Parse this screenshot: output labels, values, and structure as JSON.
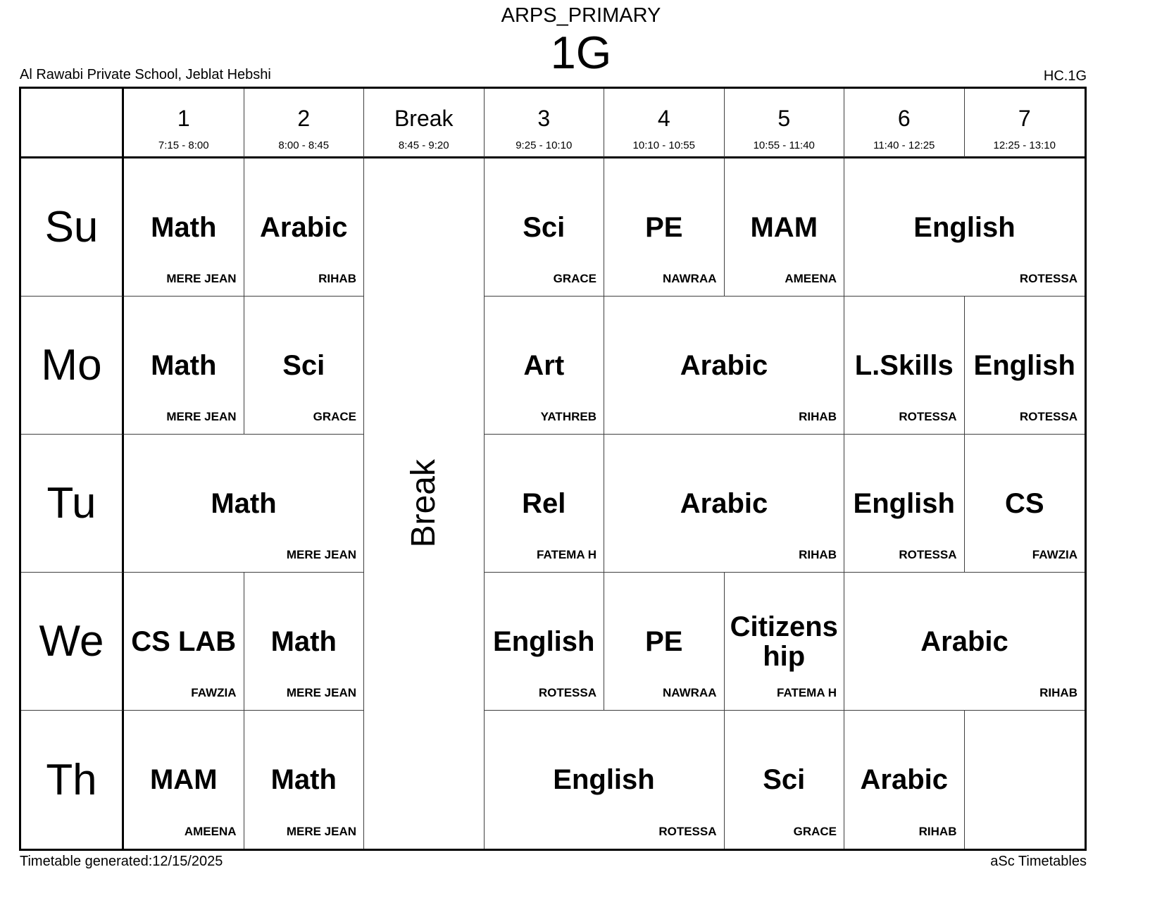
{
  "page": {
    "school_group": "ARPS_PRIMARY",
    "class_name": "1G",
    "school_name": "Al Rawabi Private School, Jeblat Hebshi",
    "class_code": "HC.1G",
    "footer_left": "Timetable generated:12/15/2025",
    "footer_right": "aSc Timetables"
  },
  "timetable": {
    "break_label": "Break",
    "periods": [
      {
        "label": "1",
        "time": "7:15 - 8:00"
      },
      {
        "label": "2",
        "time": "8:00 - 8:45"
      },
      {
        "label": "Break",
        "time": "8:45 - 9:20"
      },
      {
        "label": "3",
        "time": "9:25 - 10:10"
      },
      {
        "label": "4",
        "time": "10:10 - 10:55"
      },
      {
        "label": "5",
        "time": "10:55 - 11:40"
      },
      {
        "label": "6",
        "time": "11:40 - 12:25"
      },
      {
        "label": "7",
        "time": "12:25 - 13:10"
      }
    ],
    "days": [
      "Su",
      "Mo",
      "Tu",
      "We",
      "Th"
    ],
    "lessons": [
      {
        "day": 0,
        "col": 2,
        "span": 1,
        "subject": "Math",
        "teacher": "MERE JEAN"
      },
      {
        "day": 0,
        "col": 3,
        "span": 1,
        "subject": "Arabic",
        "teacher": "RIHAB"
      },
      {
        "day": 0,
        "col": 5,
        "span": 1,
        "subject": "Sci",
        "teacher": "GRACE"
      },
      {
        "day": 0,
        "col": 6,
        "span": 1,
        "subject": "PE",
        "teacher": "NAWRAA"
      },
      {
        "day": 0,
        "col": 7,
        "span": 1,
        "subject": "MAM",
        "teacher": "AMEENA"
      },
      {
        "day": 0,
        "col": 8,
        "span": 2,
        "subject": "English",
        "teacher": "ROTESSA"
      },
      {
        "day": 1,
        "col": 2,
        "span": 1,
        "subject": "Math",
        "teacher": "MERE JEAN"
      },
      {
        "day": 1,
        "col": 3,
        "span": 1,
        "subject": "Sci",
        "teacher": "GRACE"
      },
      {
        "day": 1,
        "col": 5,
        "span": 1,
        "subject": "Art",
        "teacher": "YATHREB"
      },
      {
        "day": 1,
        "col": 6,
        "span": 2,
        "subject": "Arabic",
        "teacher": "RIHAB"
      },
      {
        "day": 1,
        "col": 8,
        "span": 1,
        "subject": "L.Skills",
        "teacher": "ROTESSA"
      },
      {
        "day": 1,
        "col": 9,
        "span": 1,
        "subject": "English",
        "teacher": "ROTESSA"
      },
      {
        "day": 2,
        "col": 2,
        "span": 2,
        "subject": "Math",
        "teacher": "MERE JEAN"
      },
      {
        "day": 2,
        "col": 5,
        "span": 1,
        "subject": "Rel",
        "teacher": "FATEMA H"
      },
      {
        "day": 2,
        "col": 6,
        "span": 2,
        "subject": "Arabic",
        "teacher": "RIHAB"
      },
      {
        "day": 2,
        "col": 8,
        "span": 1,
        "subject": "English",
        "teacher": "ROTESSA"
      },
      {
        "day": 2,
        "col": 9,
        "span": 1,
        "subject": "CS",
        "teacher": "FAWZIA"
      },
      {
        "day": 3,
        "col": 2,
        "span": 1,
        "subject": "CS LAB",
        "teacher": "FAWZIA"
      },
      {
        "day": 3,
        "col": 3,
        "span": 1,
        "subject": "Math",
        "teacher": "MERE JEAN"
      },
      {
        "day": 3,
        "col": 5,
        "span": 1,
        "subject": "English",
        "teacher": "ROTESSA"
      },
      {
        "day": 3,
        "col": 6,
        "span": 1,
        "subject": "PE",
        "teacher": "NAWRAA"
      },
      {
        "day": 3,
        "col": 7,
        "span": 1,
        "subject": "Citizenship",
        "teacher": "FATEMA H"
      },
      {
        "day": 3,
        "col": 8,
        "span": 2,
        "subject": "Arabic",
        "teacher": "RIHAB"
      },
      {
        "day": 4,
        "col": 2,
        "span": 1,
        "subject": "MAM",
        "teacher": "AMEENA"
      },
      {
        "day": 4,
        "col": 3,
        "span": 1,
        "subject": "Math",
        "teacher": "MERE JEAN"
      },
      {
        "day": 4,
        "col": 5,
        "span": 2,
        "subject": "English",
        "teacher": "ROTESSA"
      },
      {
        "day": 4,
        "col": 7,
        "span": 1,
        "subject": "Sci",
        "teacher": "GRACE"
      },
      {
        "day": 4,
        "col": 8,
        "span": 1,
        "subject": "Arabic",
        "teacher": "RIHAB"
      },
      {
        "day": 4,
        "col": 9,
        "span": 1,
        "subject": "",
        "teacher": ""
      }
    ]
  }
}
